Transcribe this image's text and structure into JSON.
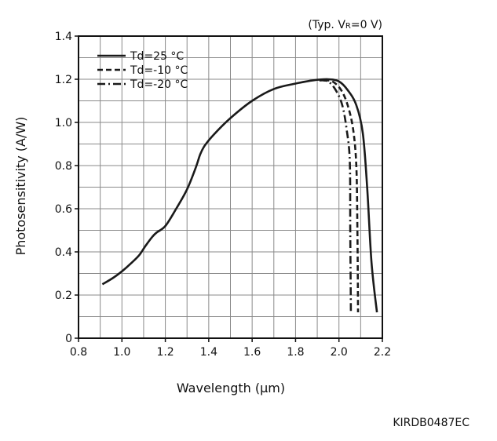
{
  "conditions": {
    "prefix": "(Typ. V",
    "subscript": "R",
    "suffix": "=0 V)"
  },
  "footer_code": "KIRDB0487EC",
  "chart_data": {
    "type": "line",
    "title": "",
    "xlabel": "Wavelength (μm)",
    "ylabel": "Photosensitivity (A/W)",
    "xlim": [
      0.8,
      2.2
    ],
    "ylim": [
      0,
      1.4
    ],
    "x_ticks": [
      "0.8",
      "1.0",
      "1.2",
      "1.4",
      "1.6",
      "1.8",
      "2.0",
      "2.2"
    ],
    "y_ticks": [
      "0",
      "0.2",
      "0.4",
      "0.6",
      "0.8",
      "1.0",
      "1.2",
      "1.4"
    ],
    "grid": true,
    "legend_position": "top-left",
    "line_color": "#1a1a1a",
    "series": [
      {
        "name": "Td=25 °C",
        "style": "solid",
        "points": [
          [
            0.91,
            0.25
          ],
          [
            0.96,
            0.28
          ],
          [
            1.0,
            0.31
          ],
          [
            1.04,
            0.345
          ],
          [
            1.08,
            0.385
          ],
          [
            1.11,
            0.43
          ],
          [
            1.14,
            0.47
          ],
          [
            1.16,
            0.49
          ],
          [
            1.2,
            0.52
          ],
          [
            1.25,
            0.6
          ],
          [
            1.3,
            0.69
          ],
          [
            1.34,
            0.79
          ],
          [
            1.36,
            0.85
          ],
          [
            1.38,
            0.89
          ],
          [
            1.42,
            0.94
          ],
          [
            1.5,
            1.02
          ],
          [
            1.6,
            1.1
          ],
          [
            1.7,
            1.155
          ],
          [
            1.8,
            1.18
          ],
          [
            1.88,
            1.195
          ],
          [
            1.95,
            1.2
          ],
          [
            2.0,
            1.19
          ],
          [
            2.04,
            1.15
          ],
          [
            2.08,
            1.08
          ],
          [
            2.11,
            0.95
          ],
          [
            2.13,
            0.7
          ],
          [
            2.15,
            0.35
          ],
          [
            2.175,
            0.12
          ]
        ]
      },
      {
        "name": "Td=-10 °C",
        "style": "dashed",
        "points": [
          [
            1.93,
            1.195
          ],
          [
            1.97,
            1.19
          ],
          [
            2.01,
            1.15
          ],
          [
            2.04,
            1.08
          ],
          [
            2.065,
            0.97
          ],
          [
            2.08,
            0.8
          ],
          [
            2.085,
            0.5
          ],
          [
            2.088,
            0.12
          ]
        ]
      },
      {
        "name": "Td=-20 °C",
        "style": "dashdot",
        "points": [
          [
            1.91,
            1.195
          ],
          [
            1.95,
            1.19
          ],
          [
            1.985,
            1.15
          ],
          [
            2.015,
            1.08
          ],
          [
            2.035,
            0.97
          ],
          [
            2.05,
            0.82
          ],
          [
            2.052,
            0.5
          ],
          [
            2.055,
            0.12
          ]
        ]
      }
    ]
  }
}
